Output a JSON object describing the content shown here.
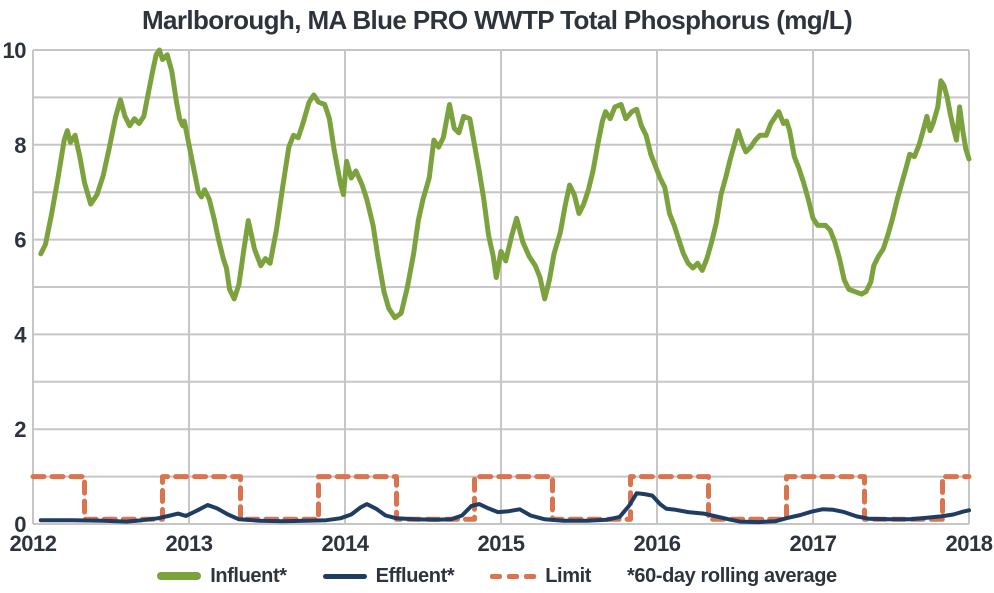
{
  "title": "Marlborough, MA Blue PRO WWTP Total Phosphorus (mg/L)",
  "colors": {
    "influent": "#7ca23d",
    "effluent": "#1f3c62",
    "limit": "#d9744f",
    "text": "#2e343d",
    "grid": "#c6c6c6",
    "background": "#ffffff"
  },
  "legend": {
    "influent_label": "Influent*",
    "effluent_label": "Effluent*",
    "limit_label": "Limit",
    "note": "*60-day rolling average"
  },
  "chart_data": {
    "type": "line",
    "title": "Marlborough, MA Blue PRO WWTP Total Phosphorus (mg/L)",
    "xlabel": "",
    "ylabel": "mg/L",
    "xlim": [
      2012,
      2018
    ],
    "ylim": [
      0,
      10
    ],
    "x_ticks": [
      2012,
      2013,
      2014,
      2015,
      2016,
      2017,
      2018
    ],
    "y_ticks": [
      0,
      2,
      4,
      6,
      8,
      10
    ],
    "y_gridlines": [
      0,
      1,
      2,
      3,
      4,
      5,
      6,
      7,
      8,
      9,
      10
    ],
    "grid": true,
    "legend_position": "bottom",
    "note": "*60-day rolling average",
    "series": [
      {
        "name": "Limit",
        "color_key": "limit",
        "style": "dashed",
        "width": 5,
        "points": [
          [
            2012.0,
            1.0
          ],
          [
            2012.33,
            1.0
          ],
          [
            2012.33,
            0.1
          ],
          [
            2012.83,
            0.1
          ],
          [
            2012.83,
            1.0
          ],
          [
            2013.33,
            1.0
          ],
          [
            2013.33,
            0.1
          ],
          [
            2013.83,
            0.1
          ],
          [
            2013.83,
            1.0
          ],
          [
            2014.33,
            1.0
          ],
          [
            2014.33,
            0.1
          ],
          [
            2014.83,
            0.1
          ],
          [
            2014.83,
            1.0
          ],
          [
            2015.33,
            1.0
          ],
          [
            2015.33,
            0.1
          ],
          [
            2015.83,
            0.1
          ],
          [
            2015.83,
            1.0
          ],
          [
            2016.33,
            1.0
          ],
          [
            2016.33,
            0.1
          ],
          [
            2016.83,
            0.1
          ],
          [
            2016.83,
            1.0
          ],
          [
            2017.33,
            1.0
          ],
          [
            2017.33,
            0.1
          ],
          [
            2017.83,
            0.1
          ],
          [
            2017.83,
            1.0
          ],
          [
            2018.0,
            1.0
          ]
        ]
      },
      {
        "name": "Effluent*",
        "color_key": "effluent",
        "style": "solid",
        "width": 4,
        "points": [
          [
            2012.05,
            0.08
          ],
          [
            2012.25,
            0.08
          ],
          [
            2012.45,
            0.07
          ],
          [
            2012.6,
            0.05
          ],
          [
            2012.7,
            0.08
          ],
          [
            2012.8,
            0.12
          ],
          [
            2012.88,
            0.18
          ],
          [
            2012.93,
            0.22
          ],
          [
            2012.98,
            0.17
          ],
          [
            2013.05,
            0.28
          ],
          [
            2013.12,
            0.4
          ],
          [
            2013.18,
            0.33
          ],
          [
            2013.25,
            0.2
          ],
          [
            2013.32,
            0.1
          ],
          [
            2013.45,
            0.07
          ],
          [
            2013.6,
            0.06
          ],
          [
            2013.75,
            0.07
          ],
          [
            2013.88,
            0.08
          ],
          [
            2013.97,
            0.12
          ],
          [
            2014.04,
            0.2
          ],
          [
            2014.1,
            0.35
          ],
          [
            2014.14,
            0.42
          ],
          [
            2014.2,
            0.32
          ],
          [
            2014.26,
            0.18
          ],
          [
            2014.33,
            0.12
          ],
          [
            2014.45,
            0.1
          ],
          [
            2014.58,
            0.09
          ],
          [
            2014.68,
            0.1
          ],
          [
            2014.75,
            0.18
          ],
          [
            2014.81,
            0.38
          ],
          [
            2014.86,
            0.42
          ],
          [
            2014.92,
            0.33
          ],
          [
            2014.98,
            0.25
          ],
          [
            2015.05,
            0.27
          ],
          [
            2015.12,
            0.31
          ],
          [
            2015.19,
            0.18
          ],
          [
            2015.28,
            0.1
          ],
          [
            2015.4,
            0.07
          ],
          [
            2015.55,
            0.07
          ],
          [
            2015.68,
            0.09
          ],
          [
            2015.76,
            0.15
          ],
          [
            2015.82,
            0.38
          ],
          [
            2015.87,
            0.65
          ],
          [
            2015.92,
            0.63
          ],
          [
            2015.97,
            0.6
          ],
          [
            2016.02,
            0.42
          ],
          [
            2016.06,
            0.32
          ],
          [
            2016.12,
            0.3
          ],
          [
            2016.2,
            0.25
          ],
          [
            2016.3,
            0.22
          ],
          [
            2016.38,
            0.16
          ],
          [
            2016.46,
            0.1
          ],
          [
            2016.53,
            0.05
          ],
          [
            2016.65,
            0.04
          ],
          [
            2016.76,
            0.06
          ],
          [
            2016.84,
            0.13
          ],
          [
            2016.92,
            0.19
          ],
          [
            2016.99,
            0.26
          ],
          [
            2017.06,
            0.31
          ],
          [
            2017.13,
            0.3
          ],
          [
            2017.2,
            0.25
          ],
          [
            2017.28,
            0.16
          ],
          [
            2017.36,
            0.11
          ],
          [
            2017.5,
            0.1
          ],
          [
            2017.62,
            0.1
          ],
          [
            2017.73,
            0.13
          ],
          [
            2017.82,
            0.16
          ],
          [
            2017.9,
            0.2
          ],
          [
            2017.96,
            0.26
          ],
          [
            2018.0,
            0.29
          ]
        ]
      },
      {
        "name": "Influent*",
        "color_key": "influent",
        "style": "solid",
        "width": 5,
        "points": [
          [
            2012.05,
            5.7
          ],
          [
            2012.08,
            5.9
          ],
          [
            2012.12,
            6.55
          ],
          [
            2012.16,
            7.3
          ],
          [
            2012.2,
            8.1
          ],
          [
            2012.22,
            8.3
          ],
          [
            2012.24,
            8.05
          ],
          [
            2012.27,
            8.2
          ],
          [
            2012.3,
            7.75
          ],
          [
            2012.33,
            7.2
          ],
          [
            2012.37,
            6.75
          ],
          [
            2012.41,
            6.95
          ],
          [
            2012.45,
            7.35
          ],
          [
            2012.49,
            7.95
          ],
          [
            2012.53,
            8.6
          ],
          [
            2012.56,
            8.95
          ],
          [
            2012.59,
            8.6
          ],
          [
            2012.62,
            8.4
          ],
          [
            2012.65,
            8.55
          ],
          [
            2012.68,
            8.45
          ],
          [
            2012.71,
            8.6
          ],
          [
            2012.74,
            9.1
          ],
          [
            2012.77,
            9.6
          ],
          [
            2012.79,
            9.9
          ],
          [
            2012.81,
            10.0
          ],
          [
            2012.83,
            9.8
          ],
          [
            2012.86,
            9.9
          ],
          [
            2012.89,
            9.55
          ],
          [
            2012.92,
            8.9
          ],
          [
            2012.94,
            8.55
          ],
          [
            2012.96,
            8.4
          ],
          [
            2012.97,
            8.5
          ],
          [
            2013.0,
            8.0
          ],
          [
            2013.03,
            7.5
          ],
          [
            2013.06,
            7.0
          ],
          [
            2013.08,
            6.9
          ],
          [
            2013.1,
            7.05
          ],
          [
            2013.13,
            6.85
          ],
          [
            2013.16,
            6.45
          ],
          [
            2013.19,
            6.0
          ],
          [
            2013.22,
            5.6
          ],
          [
            2013.24,
            5.4
          ],
          [
            2013.26,
            4.95
          ],
          [
            2013.29,
            4.75
          ],
          [
            2013.32,
            5.05
          ],
          [
            2013.35,
            5.75
          ],
          [
            2013.38,
            6.4
          ],
          [
            2013.42,
            5.8
          ],
          [
            2013.46,
            5.45
          ],
          [
            2013.49,
            5.6
          ],
          [
            2013.52,
            5.5
          ],
          [
            2013.56,
            6.2
          ],
          [
            2013.6,
            7.1
          ],
          [
            2013.64,
            7.95
          ],
          [
            2013.67,
            8.2
          ],
          [
            2013.7,
            8.15
          ],
          [
            2013.73,
            8.45
          ],
          [
            2013.77,
            8.9
          ],
          [
            2013.8,
            9.05
          ],
          [
            2013.83,
            8.9
          ],
          [
            2013.87,
            8.85
          ],
          [
            2013.9,
            8.55
          ],
          [
            2013.93,
            7.9
          ],
          [
            2013.97,
            7.2
          ],
          [
            2013.99,
            6.95
          ],
          [
            2014.01,
            7.65
          ],
          [
            2014.04,
            7.3
          ],
          [
            2014.07,
            7.45
          ],
          [
            2014.11,
            7.15
          ],
          [
            2014.14,
            6.85
          ],
          [
            2014.18,
            6.3
          ],
          [
            2014.21,
            5.65
          ],
          [
            2014.25,
            4.9
          ],
          [
            2014.28,
            4.55
          ],
          [
            2014.32,
            4.35
          ],
          [
            2014.36,
            4.45
          ],
          [
            2014.4,
            5.0
          ],
          [
            2014.44,
            5.7
          ],
          [
            2014.47,
            6.4
          ],
          [
            2014.5,
            6.85
          ],
          [
            2014.54,
            7.3
          ],
          [
            2014.57,
            8.1
          ],
          [
            2014.6,
            7.95
          ],
          [
            2014.63,
            8.15
          ],
          [
            2014.67,
            8.85
          ],
          [
            2014.7,
            8.35
          ],
          [
            2014.73,
            8.25
          ],
          [
            2014.76,
            8.6
          ],
          [
            2014.8,
            8.55
          ],
          [
            2014.83,
            8.0
          ],
          [
            2014.86,
            7.45
          ],
          [
            2014.89,
            6.85
          ],
          [
            2014.92,
            6.1
          ],
          [
            2014.95,
            5.65
          ],
          [
            2014.97,
            5.2
          ],
          [
            2015.0,
            5.75
          ],
          [
            2015.03,
            5.55
          ],
          [
            2015.07,
            6.1
          ],
          [
            2015.1,
            6.45
          ],
          [
            2015.14,
            5.95
          ],
          [
            2015.18,
            5.65
          ],
          [
            2015.22,
            5.45
          ],
          [
            2015.25,
            5.2
          ],
          [
            2015.28,
            4.75
          ],
          [
            2015.31,
            5.15
          ],
          [
            2015.34,
            5.7
          ],
          [
            2015.38,
            6.15
          ],
          [
            2015.41,
            6.7
          ],
          [
            2015.44,
            7.15
          ],
          [
            2015.47,
            6.95
          ],
          [
            2015.5,
            6.55
          ],
          [
            2015.53,
            6.75
          ],
          [
            2015.56,
            7.05
          ],
          [
            2015.59,
            7.45
          ],
          [
            2015.62,
            8.0
          ],
          [
            2015.65,
            8.5
          ],
          [
            2015.67,
            8.7
          ],
          [
            2015.7,
            8.55
          ],
          [
            2015.73,
            8.8
          ],
          [
            2015.77,
            8.85
          ],
          [
            2015.8,
            8.55
          ],
          [
            2015.84,
            8.7
          ],
          [
            2015.87,
            8.75
          ],
          [
            2015.9,
            8.4
          ],
          [
            2015.93,
            8.2
          ],
          [
            2015.96,
            7.8
          ],
          [
            2015.99,
            7.55
          ],
          [
            2016.02,
            7.3
          ],
          [
            2016.05,
            7.1
          ],
          [
            2016.08,
            6.55
          ],
          [
            2016.11,
            6.3
          ],
          [
            2016.14,
            6.0
          ],
          [
            2016.17,
            5.7
          ],
          [
            2016.2,
            5.5
          ],
          [
            2016.23,
            5.4
          ],
          [
            2016.26,
            5.5
          ],
          [
            2016.29,
            5.35
          ],
          [
            2016.32,
            5.6
          ],
          [
            2016.35,
            5.95
          ],
          [
            2016.38,
            6.35
          ],
          [
            2016.41,
            6.95
          ],
          [
            2016.44,
            7.3
          ],
          [
            2016.47,
            7.7
          ],
          [
            2016.5,
            8.05
          ],
          [
            2016.52,
            8.3
          ],
          [
            2016.55,
            8.0
          ],
          [
            2016.57,
            7.85
          ],
          [
            2016.6,
            7.95
          ],
          [
            2016.63,
            8.1
          ],
          [
            2016.66,
            8.2
          ],
          [
            2016.7,
            8.2
          ],
          [
            2016.73,
            8.45
          ],
          [
            2016.76,
            8.6
          ],
          [
            2016.78,
            8.7
          ],
          [
            2016.81,
            8.45
          ],
          [
            2016.83,
            8.5
          ],
          [
            2016.85,
            8.3
          ],
          [
            2016.88,
            7.75
          ],
          [
            2016.91,
            7.5
          ],
          [
            2016.94,
            7.2
          ],
          [
            2016.97,
            6.85
          ],
          [
            2017.0,
            6.45
          ],
          [
            2017.03,
            6.3
          ],
          [
            2017.08,
            6.3
          ],
          [
            2017.11,
            6.2
          ],
          [
            2017.14,
            5.95
          ],
          [
            2017.17,
            5.6
          ],
          [
            2017.2,
            5.15
          ],
          [
            2017.23,
            4.95
          ],
          [
            2017.27,
            4.9
          ],
          [
            2017.31,
            4.85
          ],
          [
            2017.34,
            4.9
          ],
          [
            2017.37,
            5.1
          ],
          [
            2017.39,
            5.45
          ],
          [
            2017.42,
            5.65
          ],
          [
            2017.45,
            5.8
          ],
          [
            2017.48,
            6.1
          ],
          [
            2017.51,
            6.45
          ],
          [
            2017.54,
            6.85
          ],
          [
            2017.57,
            7.2
          ],
          [
            2017.6,
            7.55
          ],
          [
            2017.62,
            7.8
          ],
          [
            2017.65,
            7.75
          ],
          [
            2017.68,
            8.0
          ],
          [
            2017.71,
            8.35
          ],
          [
            2017.73,
            8.6
          ],
          [
            2017.75,
            8.3
          ],
          [
            2017.77,
            8.45
          ],
          [
            2017.8,
            8.8
          ],
          [
            2017.82,
            9.35
          ],
          [
            2017.84,
            9.25
          ],
          [
            2017.86,
            9.0
          ],
          [
            2017.88,
            8.65
          ],
          [
            2017.9,
            8.35
          ],
          [
            2017.92,
            8.1
          ],
          [
            2017.94,
            8.8
          ],
          [
            2017.96,
            8.3
          ],
          [
            2017.98,
            7.9
          ],
          [
            2018.0,
            7.7
          ]
        ]
      }
    ]
  }
}
